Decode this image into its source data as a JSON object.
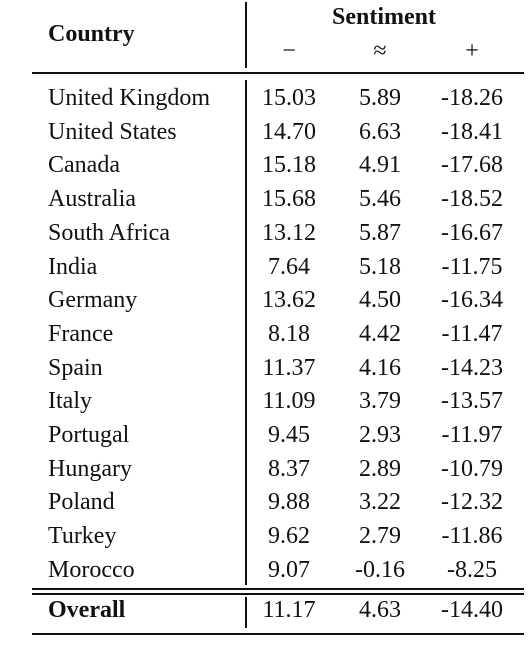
{
  "table": {
    "header": {
      "country": "Country",
      "sentiment": "Sentiment",
      "columns": [
        "−",
        "≈",
        "+"
      ]
    },
    "rows": [
      [
        "United Kingdom",
        "15.03",
        "5.89",
        "-18.26"
      ],
      [
        "United States",
        "14.70",
        "6.63",
        "-18.41"
      ],
      [
        "Canada",
        "15.18",
        "4.91",
        "-17.68"
      ],
      [
        "Australia",
        "15.68",
        "5.46",
        "-18.52"
      ],
      [
        "South Africa",
        "13.12",
        "5.87",
        "-16.67"
      ],
      [
        "India",
        "7.64",
        "5.18",
        "-11.75"
      ],
      [
        "Germany",
        "13.62",
        "4.50",
        "-16.34"
      ],
      [
        "France",
        "8.18",
        "4.42",
        "-11.47"
      ],
      [
        "Spain",
        "11.37",
        "4.16",
        "-14.23"
      ],
      [
        "Italy",
        "11.09",
        "3.79",
        "-13.57"
      ],
      [
        "Portugal",
        "9.45",
        "2.93",
        "-11.97"
      ],
      [
        "Hungary",
        "8.37",
        "2.89",
        "-10.79"
      ],
      [
        "Poland",
        "9.88",
        "3.22",
        "-12.32"
      ],
      [
        "Turkey",
        "9.62",
        "2.79",
        "-11.86"
      ],
      [
        "Morocco",
        "9.07",
        "-0.16",
        "-8.25"
      ]
    ],
    "overall": [
      "Overall",
      "11.17",
      "4.63",
      "-14.40"
    ]
  }
}
